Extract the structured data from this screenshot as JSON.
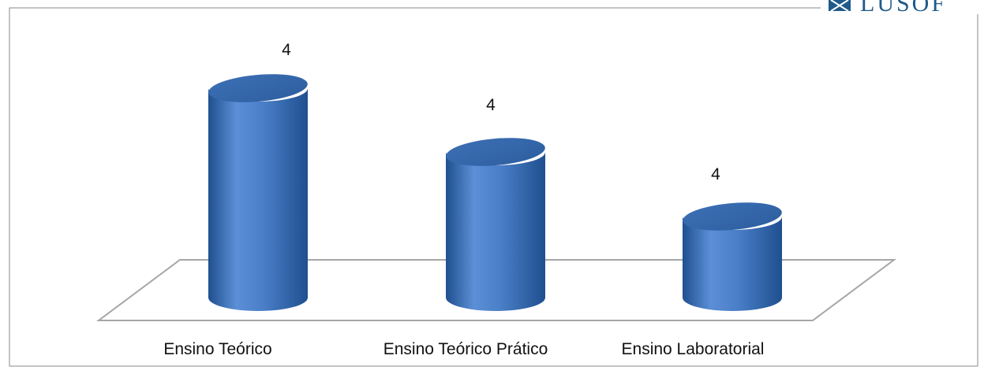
{
  "logo": {
    "text": "LUSOF",
    "color": "#1f5a8a"
  },
  "chart_data": {
    "type": "bar",
    "style": "3d-cylinder",
    "title": "",
    "xlabel": "",
    "ylabel": "",
    "categories": [
      "Ensino Teórico",
      "Ensino Teórico Prático",
      "Ensino Laboratorial"
    ],
    "values": [
      4,
      4,
      4
    ],
    "data_labels": [
      "4",
      "4",
      "4"
    ],
    "ylim": [
      0,
      4
    ],
    "grid": false,
    "legend": "none",
    "bar_color": "#4a7fc8",
    "bar_dark_color": "#1f4f8f",
    "floor_color": "#9a9a9a"
  }
}
